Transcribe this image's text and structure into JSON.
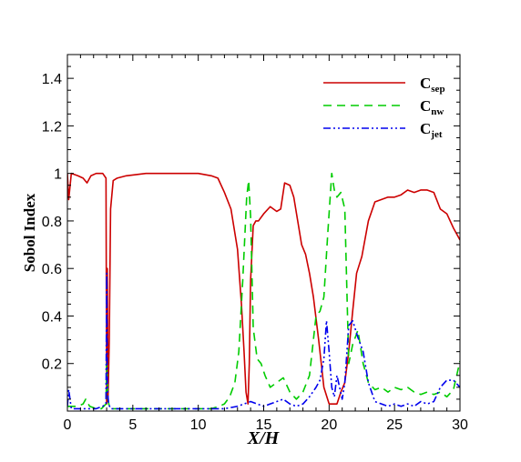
{
  "chart_data": {
    "type": "line",
    "xlabel": "X/H",
    "ylabel": "Sobol Index",
    "xlim": [
      0,
      30
    ],
    "ylim": [
      0,
      1.5
    ],
    "xticks": [
      0,
      5,
      10,
      15,
      20,
      25,
      30
    ],
    "yticks": [
      0.2,
      0.4,
      0.6,
      0.8,
      1,
      1.2,
      1.4
    ],
    "xtick_labels": [
      "0",
      "5",
      "10",
      "15",
      "20",
      "25",
      "30"
    ],
    "ytick_labels": [
      "0.2",
      "0.4",
      "0.6",
      "0.8",
      "1",
      "1.2",
      "1.4"
    ],
    "grid": false,
    "legend_position": "top-right",
    "series": [
      {
        "name_main": "C",
        "name_sub": "sep",
        "color": "#cc0000",
        "dash": "solid",
        "x": [
          0,
          0.1,
          0.3,
          0.8,
          1.2,
          1.5,
          1.8,
          2.2,
          2.7,
          2.95,
          3.0,
          3.05,
          3.1,
          3.2,
          3.3,
          3.5,
          3.8,
          4.5,
          6,
          8,
          10,
          11,
          11.5,
          12,
          12.5,
          13,
          13.3,
          13.5,
          13.65,
          13.8,
          13.9,
          14.0,
          14.2,
          14.4,
          14.6,
          15,
          15.5,
          16,
          16.3,
          16.6,
          17,
          17.3,
          17.6,
          17.9,
          18.2,
          18.5,
          18.8,
          19.2,
          19.6,
          20,
          20.1,
          20.3,
          20.6,
          20.9,
          21.2,
          21.5,
          21.8,
          22.1,
          22.5,
          23,
          23.5,
          24,
          24.5,
          25,
          25.5,
          26,
          26.5,
          27,
          27.5,
          28,
          28.5,
          29,
          29.5,
          30
        ],
        "y": [
          1.0,
          0.89,
          1.0,
          0.99,
          0.98,
          0.96,
          0.99,
          1.0,
          1.0,
          0.98,
          0.03,
          0.6,
          0.04,
          0.3,
          0.85,
          0.97,
          0.98,
          0.99,
          1.0,
          1.0,
          1.0,
          0.99,
          0.98,
          0.92,
          0.85,
          0.68,
          0.45,
          0.25,
          0.08,
          0.03,
          0.2,
          0.55,
          0.78,
          0.8,
          0.8,
          0.83,
          0.86,
          0.84,
          0.85,
          0.96,
          0.95,
          0.9,
          0.8,
          0.7,
          0.66,
          0.58,
          0.48,
          0.3,
          0.1,
          0.03,
          0.03,
          0.03,
          0.03,
          0.08,
          0.12,
          0.25,
          0.42,
          0.58,
          0.65,
          0.8,
          0.88,
          0.89,
          0.9,
          0.9,
          0.91,
          0.93,
          0.92,
          0.93,
          0.93,
          0.92,
          0.85,
          0.83,
          0.77,
          0.72
        ]
      },
      {
        "name_main": "C",
        "name_sub": "nw",
        "color": "#00cc00",
        "dash": "9,6",
        "x": [
          0,
          0.3,
          0.8,
          1.2,
          1.4,
          1.7,
          2.2,
          2.6,
          2.95,
          3.0,
          3.1,
          3.2,
          3.4,
          4,
          6,
          8,
          10,
          11,
          11.6,
          12,
          12.4,
          12.8,
          13.1,
          13.4,
          13.7,
          13.85,
          14.0,
          14.2,
          14.5,
          14.8,
          15.1,
          15.5,
          16,
          16.5,
          17,
          17.5,
          18,
          18.5,
          19,
          19.3,
          19.6,
          19.9,
          20.2,
          20.4,
          20.6,
          20.9,
          21.2,
          21.5,
          21.8,
          22.2,
          22.6,
          23,
          23.5,
          24,
          24.5,
          25,
          25.5,
          26,
          26.5,
          27,
          27.5,
          28,
          28.5,
          29,
          29.5,
          30
        ],
        "y": [
          0.02,
          0.02,
          0.02,
          0.03,
          0.05,
          0.02,
          0.01,
          0.01,
          0.03,
          0.2,
          0.05,
          0.02,
          0.01,
          0.01,
          0.01,
          0.01,
          0.01,
          0.01,
          0.02,
          0.03,
          0.06,
          0.12,
          0.25,
          0.55,
          0.9,
          0.97,
          0.82,
          0.35,
          0.22,
          0.2,
          0.15,
          0.1,
          0.12,
          0.14,
          0.08,
          0.05,
          0.08,
          0.15,
          0.4,
          0.42,
          0.48,
          0.75,
          1.0,
          0.93,
          0.9,
          0.92,
          0.85,
          0.2,
          0.28,
          0.34,
          0.2,
          0.12,
          0.09,
          0.1,
          0.08,
          0.1,
          0.09,
          0.1,
          0.08,
          0.07,
          0.08,
          0.07,
          0.08,
          0.06,
          0.09,
          0.21
        ]
      },
      {
        "name_main": "C",
        "name_sub": "jet",
        "color": "#0000ee",
        "dash": "8,3,2,3,2,3",
        "x": [
          0,
          0.1,
          0.3,
          0.8,
          1.5,
          2.2,
          2.7,
          2.95,
          3.0,
          3.05,
          3.15,
          3.3,
          3.6,
          4.5,
          6,
          8,
          10,
          11,
          12,
          13,
          13.5,
          14,
          14.5,
          15,
          15.5,
          16,
          16.5,
          17,
          17.5,
          18,
          18.5,
          19,
          19.3,
          19.6,
          19.8,
          20.0,
          20.2,
          20.4,
          20.6,
          20.8,
          21.0,
          21.2,
          21.5,
          21.8,
          22.2,
          22.6,
          23,
          23.5,
          24,
          24.5,
          25,
          25.5,
          26,
          26.5,
          27,
          27.5,
          28,
          28.5,
          29,
          29.5,
          30
        ],
        "y": [
          0.02,
          0.09,
          0.01,
          0.01,
          0.01,
          0.01,
          0.02,
          0.03,
          0.58,
          0.1,
          0.03,
          0.01,
          0.01,
          0.01,
          0.01,
          0.01,
          0.01,
          0.01,
          0.01,
          0.02,
          0.03,
          0.04,
          0.03,
          0.02,
          0.03,
          0.04,
          0.05,
          0.03,
          0.02,
          0.03,
          0.06,
          0.1,
          0.13,
          0.22,
          0.38,
          0.25,
          0.1,
          0.06,
          0.15,
          0.1,
          0.05,
          0.12,
          0.36,
          0.38,
          0.31,
          0.25,
          0.12,
          0.04,
          0.03,
          0.02,
          0.03,
          0.02,
          0.03,
          0.02,
          0.04,
          0.03,
          0.04,
          0.1,
          0.13,
          0.13,
          0.1
        ]
      }
    ]
  }
}
